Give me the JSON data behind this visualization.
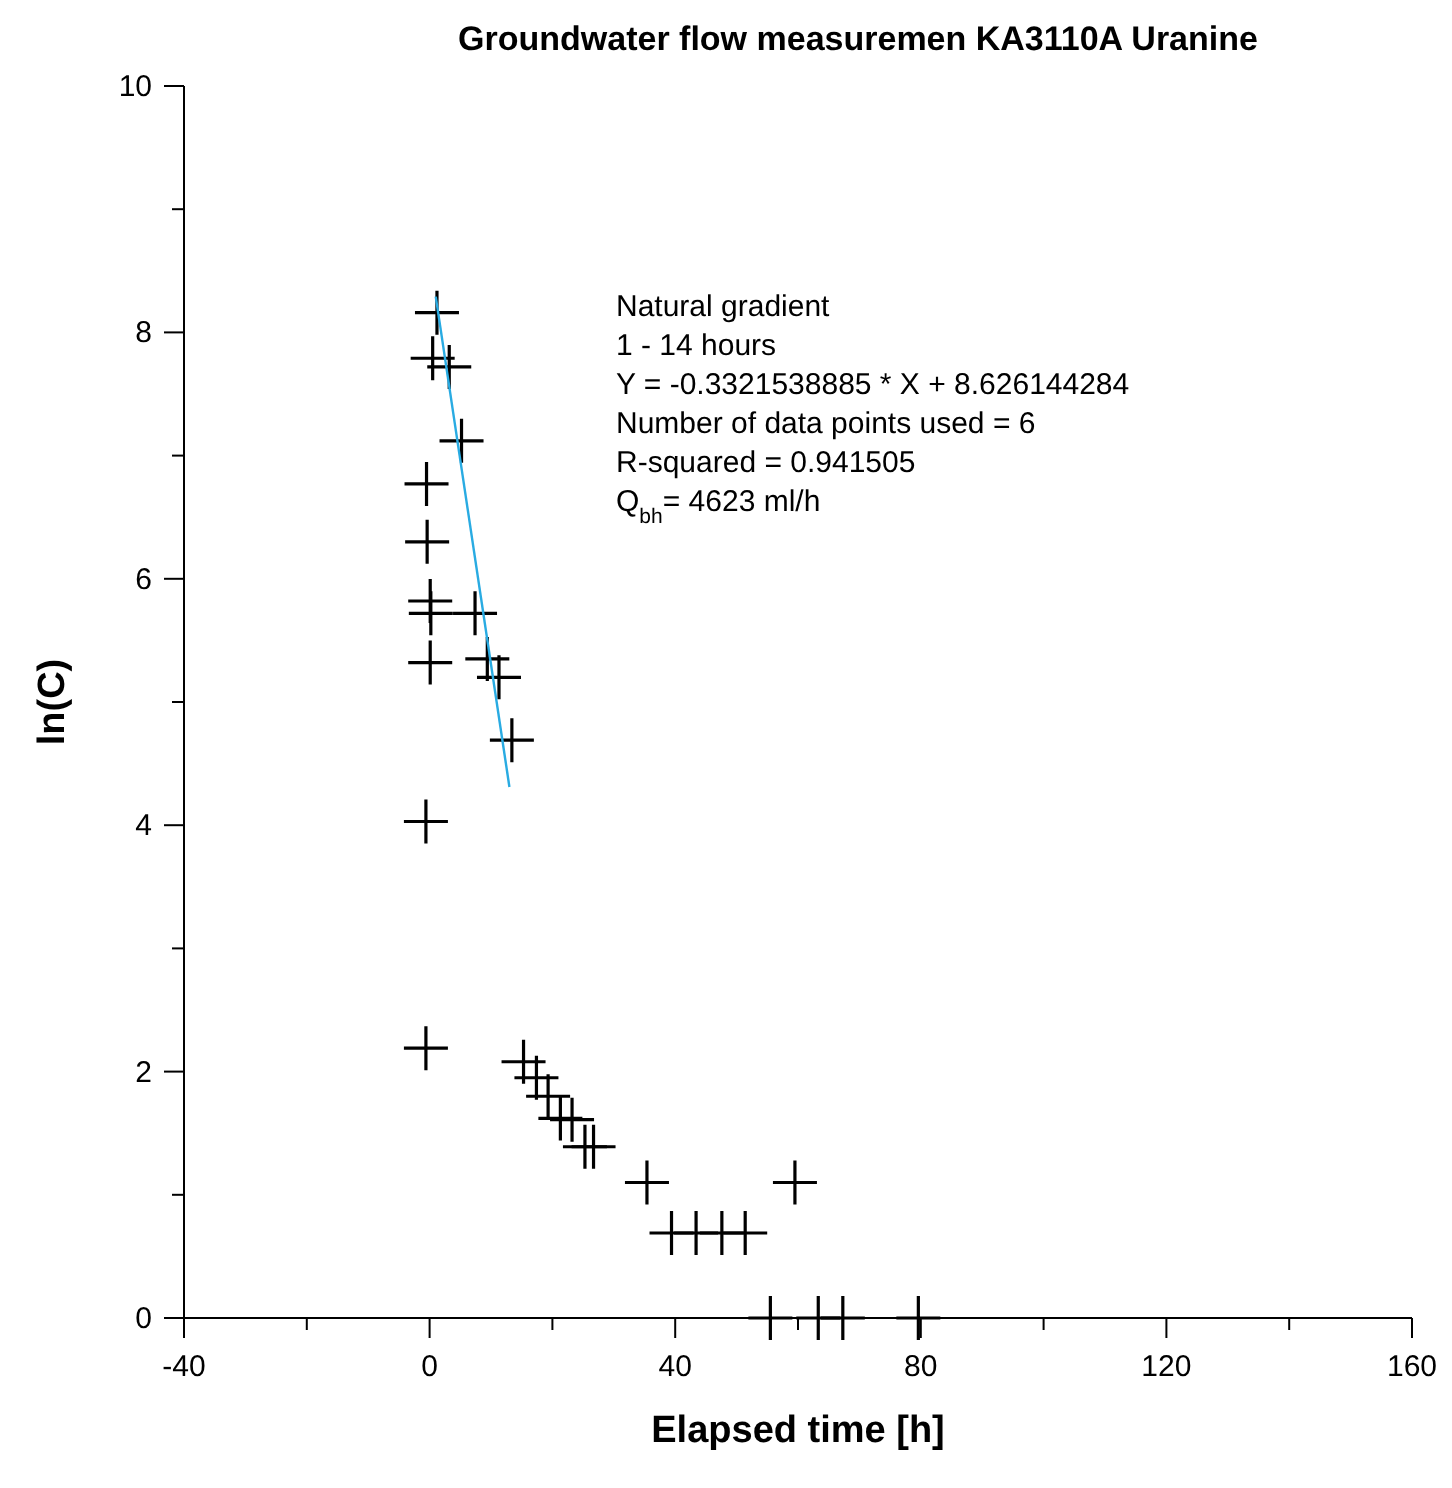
{
  "chart_data": {
    "type": "scatter",
    "title": "Groundwater flow measuremen KA3110A Uranine",
    "xlabel": "Elapsed time [h]",
    "ylabel": "ln(C)",
    "xlim": [
      -40,
      160
    ],
    "xticks": [
      -40,
      {
        "value": -20,
        "label": null
      },
      0,
      {
        "value": 20,
        "label": null
      },
      40,
      {
        "value": 60,
        "label": null
      },
      80,
      {
        "value": 100,
        "label": null
      },
      120,
      {
        "value": 140,
        "label": null
      },
      160
    ],
    "ylim": [
      0,
      10
    ],
    "yticks": [
      0,
      {
        "value": 1,
        "label": null
      },
      2,
      {
        "value": 3,
        "label": null
      },
      4,
      {
        "value": 5,
        "label": null
      },
      6,
      {
        "value": 7,
        "label": null
      },
      8,
      {
        "value": 9,
        "label": null
      },
      10
    ],
    "grid": false,
    "annotations": [
      "Natural gradient",
      "1 - 14 hours",
      "Y = -0.3321538885 * X + 8.626144284",
      "Number of data points used = 6",
      "R-squared = 0.941505",
      "Q$_{bh}$= 4623 ml/h"
    ],
    "series": [
      {
        "color": "#000000",
        "marker": "cross",
        "x": [
          1.2,
          0.5,
          3.2,
          5.2,
          -0.5,
          -0.4,
          0.1,
          0.2,
          7.4,
          9.4,
          11.3,
          0.1,
          13.4,
          -0.6,
          -0.6,
          15.3,
          17.4,
          19.3,
          21.3,
          23.2,
          25.3,
          26.7,
          35.4,
          59.5,
          39.4,
          43.4,
          47.6,
          51.4,
          55.5,
          63.3,
          67.3,
          79.6
        ],
        "values": [
          8.16,
          7.79,
          7.72,
          7.12,
          6.77,
          6.3,
          5.82,
          5.72,
          5.72,
          5.35,
          5.2,
          5.32,
          4.69,
          4.03,
          2.19,
          2.08,
          1.95,
          1.8,
          1.62,
          1.61,
          1.39,
          1.39,
          1.1,
          1.1,
          0.69,
          0.69,
          0.69,
          0.69,
          0,
          0,
          0,
          0
        ]
      },
      {
        "type": "line",
        "color": "#29abe2",
        "x": [
          1,
          13
        ],
        "values": [
          8.29,
          4.31
        ],
        "marker": "none",
        "line_style": "solid"
      }
    ]
  }
}
